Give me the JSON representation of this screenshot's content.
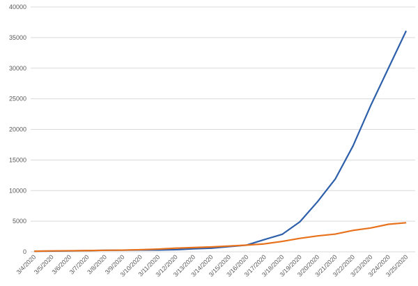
{
  "chart_data": {
    "type": "line",
    "categories": [
      "3/4/2020",
      "3/5/2020",
      "3/6/2020",
      "3/7/2020",
      "3/8/2020",
      "3/9/2020",
      "3/10/2020",
      "3/11/2020",
      "3/12/2020",
      "3/13/2020",
      "3/14/2020",
      "3/15/2020",
      "3/16/2020",
      "3/17/2020",
      "3/18/2020",
      "3/19/2020",
      "3/20/2020",
      "3/21/2020",
      "3/22/2020",
      "3/23/2020",
      "3/24/2020",
      "3/25/2020"
    ],
    "series": [
      {
        "color": "#2e5faa",
        "values": [
          100,
          120,
          150,
          200,
          250,
          270,
          300,
          300,
          350,
          500,
          600,
          850,
          1100,
          2000,
          2850,
          4900,
          8200,
          11900,
          17300,
          23900,
          30000,
          36100
        ]
      },
      {
        "color": "#e8711c",
        "values": [
          100,
          150,
          180,
          200,
          250,
          280,
          350,
          450,
          600,
          700,
          800,
          950,
          1100,
          1300,
          1700,
          2200,
          2600,
          2900,
          3500,
          3900,
          4500,
          4750
        ]
      }
    ],
    "ylim": [
      0,
      40000
    ],
    "yticks": [
      0,
      5000,
      10000,
      15000,
      20000,
      25000,
      30000,
      35000,
      40000
    ],
    "grid": true
  }
}
